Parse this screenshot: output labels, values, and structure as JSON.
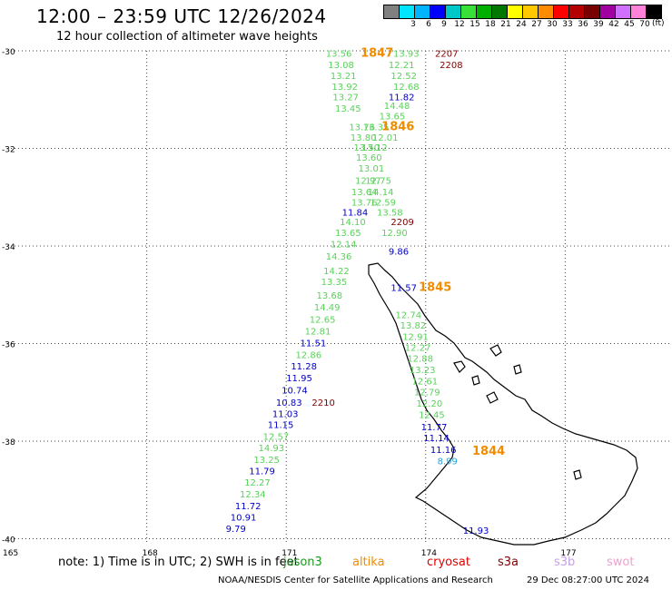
{
  "header": {
    "title": "12:00 – 23:59 UTC 12/26/2024",
    "subtitle": "12 hour collection of altimeter wave heights"
  },
  "legend": {
    "unit": "(ft)",
    "items": [
      {
        "label": "",
        "color": "#808080"
      },
      {
        "label": "3",
        "color": "#00e5ff"
      },
      {
        "label": "6",
        "color": "#00b4ff"
      },
      {
        "label": "9",
        "color": "#0000ff"
      },
      {
        "label": "12",
        "color": "#00c8c8"
      },
      {
        "label": "15",
        "color": "#38e038"
      },
      {
        "label": "18",
        "color": "#00b000"
      },
      {
        "label": "21",
        "color": "#007800"
      },
      {
        "label": "24",
        "color": "#ffff00"
      },
      {
        "label": "27",
        "color": "#ffc800"
      },
      {
        "label": "30",
        "color": "#ff8c00"
      },
      {
        "label": "33",
        "color": "#ff0000"
      },
      {
        "label": "36",
        "color": "#b40000"
      },
      {
        "label": "39",
        "color": "#780000"
      },
      {
        "label": "42",
        "color": "#a000a0"
      },
      {
        "label": "45",
        "color": "#d070ff"
      },
      {
        "label": "70",
        "color": "#ff82d8"
      },
      {
        "label": "",
        "color": "#000000"
      }
    ]
  },
  "map": {
    "lat_ticks": [
      "-30",
      "-32",
      "-34",
      "-36",
      "-38",
      "-40"
    ],
    "lon_ticks": [
      "165",
      "168",
      "171",
      "174",
      "177"
    ],
    "colors": {
      "green": "#5ad25a",
      "blue": "#0000cc",
      "cyan": "#2aa0d8",
      "orange": "#f08c00",
      "darkred": "#800000"
    },
    "points": [
      {
        "t": "13.56",
        "c": "green",
        "lon": 171.85,
        "lat": -30.05
      },
      {
        "t": "1847",
        "c": "orange",
        "lon": 172.6,
        "lat": -30.05,
        "b": 1
      },
      {
        "t": "13.93",
        "c": "green",
        "lon": 173.3,
        "lat": -30.05
      },
      {
        "t": "2207",
        "c": "darkred",
        "lon": 174.2,
        "lat": -30.05
      },
      {
        "t": "13.08",
        "c": "green",
        "lon": 171.9,
        "lat": -30.28
      },
      {
        "t": "12.21",
        "c": "green",
        "lon": 173.2,
        "lat": -30.28
      },
      {
        "t": "2208",
        "c": "darkred",
        "lon": 174.3,
        "lat": -30.28
      },
      {
        "t": "13.21",
        "c": "green",
        "lon": 171.95,
        "lat": -30.5
      },
      {
        "t": "12.52",
        "c": "green",
        "lon": 173.25,
        "lat": -30.5
      },
      {
        "t": "13.92",
        "c": "green",
        "lon": 171.98,
        "lat": -30.73
      },
      {
        "t": "12.68",
        "c": "green",
        "lon": 173.3,
        "lat": -30.73
      },
      {
        "t": "13.27",
        "c": "green",
        "lon": 172.0,
        "lat": -30.94
      },
      {
        "t": "11.82",
        "c": "blue",
        "lon": 173.2,
        "lat": -30.94
      },
      {
        "t": "13.45",
        "c": "green",
        "lon": 172.05,
        "lat": -31.17
      },
      {
        "t": "14.48",
        "c": "green",
        "lon": 173.1,
        "lat": -31.12
      },
      {
        "t": "13.65",
        "c": "green",
        "lon": 173.0,
        "lat": -31.33
      },
      {
        "t": "13.76",
        "c": "green",
        "lon": 172.35,
        "lat": -31.55
      },
      {
        "t": "13.35",
        "c": "green",
        "lon": 172.65,
        "lat": -31.55
      },
      {
        "t": "1846",
        "c": "orange",
        "lon": 173.05,
        "lat": -31.55,
        "b": 1
      },
      {
        "t": "13.80",
        "c": "green",
        "lon": 172.38,
        "lat": -31.77
      },
      {
        "t": "12.01",
        "c": "green",
        "lon": 172.85,
        "lat": -31.77
      },
      {
        "t": "13.50",
        "c": "green",
        "lon": 172.45,
        "lat": -31.97
      },
      {
        "t": "13.12",
        "c": "green",
        "lon": 172.62,
        "lat": -31.97
      },
      {
        "t": "13.60",
        "c": "green",
        "lon": 172.5,
        "lat": -32.18
      },
      {
        "t": "13.01",
        "c": "green",
        "lon": 172.55,
        "lat": -32.4
      },
      {
        "t": "12.97",
        "c": "green",
        "lon": 172.48,
        "lat": -32.65
      },
      {
        "t": "12.75",
        "c": "green",
        "lon": 172.7,
        "lat": -32.65
      },
      {
        "t": "13.64",
        "c": "green",
        "lon": 172.4,
        "lat": -32.88
      },
      {
        "t": "14.14",
        "c": "green",
        "lon": 172.75,
        "lat": -32.88
      },
      {
        "t": "13.76",
        "c": "green",
        "lon": 172.4,
        "lat": -33.1
      },
      {
        "t": "12.59",
        "c": "green",
        "lon": 172.8,
        "lat": -33.1
      },
      {
        "t": "11.84",
        "c": "blue",
        "lon": 172.2,
        "lat": -33.3
      },
      {
        "t": "13.58",
        "c": "green",
        "lon": 172.95,
        "lat": -33.3
      },
      {
        "t": "14.10",
        "c": "green",
        "lon": 172.15,
        "lat": -33.5
      },
      {
        "t": "2209",
        "c": "darkred",
        "lon": 173.25,
        "lat": -33.5
      },
      {
        "t": "13.65",
        "c": "green",
        "lon": 172.05,
        "lat": -33.72
      },
      {
        "t": "12.90",
        "c": "green",
        "lon": 173.05,
        "lat": -33.72
      },
      {
        "t": "12.14",
        "c": "green",
        "lon": 171.95,
        "lat": -33.95
      },
      {
        "t": "9.86",
        "c": "blue",
        "lon": 173.2,
        "lat": -34.1
      },
      {
        "t": "14.36",
        "c": "green",
        "lon": 171.85,
        "lat": -34.2
      },
      {
        "t": "14.22",
        "c": "green",
        "lon": 171.8,
        "lat": -34.5
      },
      {
        "t": "13.35",
        "c": "green",
        "lon": 171.75,
        "lat": -34.73
      },
      {
        "t": "11.57",
        "c": "blue",
        "lon": 173.25,
        "lat": -34.85
      },
      {
        "t": "1845",
        "c": "orange",
        "lon": 173.85,
        "lat": -34.85,
        "b": 1
      },
      {
        "t": "13.68",
        "c": "green",
        "lon": 171.65,
        "lat": -35.0
      },
      {
        "t": "14.49",
        "c": "green",
        "lon": 171.6,
        "lat": -35.25
      },
      {
        "t": "12.74",
        "c": "green",
        "lon": 173.35,
        "lat": -35.4
      },
      {
        "t": "12.65",
        "c": "green",
        "lon": 171.5,
        "lat": -35.5
      },
      {
        "t": "13.82",
        "c": "green",
        "lon": 173.45,
        "lat": -35.62
      },
      {
        "t": "12.81",
        "c": "green",
        "lon": 171.4,
        "lat": -35.74
      },
      {
        "t": "12.91",
        "c": "green",
        "lon": 173.5,
        "lat": -35.85
      },
      {
        "t": "11.51",
        "c": "blue",
        "lon": 171.3,
        "lat": -35.98
      },
      {
        "t": "12.27",
        "c": "green",
        "lon": 173.55,
        "lat": -36.07
      },
      {
        "t": "12.86",
        "c": "green",
        "lon": 171.2,
        "lat": -36.22
      },
      {
        "t": "12.88",
        "c": "green",
        "lon": 173.6,
        "lat": -36.3
      },
      {
        "t": "11.28",
        "c": "blue",
        "lon": 171.1,
        "lat": -36.46
      },
      {
        "t": "13.23",
        "c": "green",
        "lon": 173.65,
        "lat": -36.53
      },
      {
        "t": "11.95",
        "c": "blue",
        "lon": 171.0,
        "lat": -36.7
      },
      {
        "t": "12.61",
        "c": "green",
        "lon": 173.7,
        "lat": -36.76
      },
      {
        "t": "10.74",
        "c": "blue",
        "lon": 170.9,
        "lat": -36.95
      },
      {
        "t": "12.79",
        "c": "green",
        "lon": 173.75,
        "lat": -36.99
      },
      {
        "t": "10.83",
        "c": "blue",
        "lon": 170.78,
        "lat": -37.2
      },
      {
        "t": "2210",
        "c": "darkred",
        "lon": 171.55,
        "lat": -37.2
      },
      {
        "t": "12.20",
        "c": "green",
        "lon": 173.8,
        "lat": -37.22
      },
      {
        "t": "11.03",
        "c": "blue",
        "lon": 170.7,
        "lat": -37.43
      },
      {
        "t": "12.45",
        "c": "green",
        "lon": 173.85,
        "lat": -37.45
      },
      {
        "t": "11.15",
        "c": "blue",
        "lon": 170.6,
        "lat": -37.66
      },
      {
        "t": "11.77",
        "c": "blue",
        "lon": 173.9,
        "lat": -37.7
      },
      {
        "t": "12.57",
        "c": "green",
        "lon": 170.5,
        "lat": -37.9
      },
      {
        "t": "11.14",
        "c": "blue",
        "lon": 173.95,
        "lat": -37.93
      },
      {
        "t": "14.93",
        "c": "green",
        "lon": 170.4,
        "lat": -38.13
      },
      {
        "t": "13.25",
        "c": "green",
        "lon": 170.3,
        "lat": -38.37
      },
      {
        "t": "11.16",
        "c": "blue",
        "lon": 174.1,
        "lat": -38.17
      },
      {
        "t": "1844",
        "c": "orange",
        "lon": 175.0,
        "lat": -38.2,
        "b": 1
      },
      {
        "t": "11.79",
        "c": "blue",
        "lon": 170.2,
        "lat": -38.6
      },
      {
        "t": "8.99",
        "c": "cyan",
        "lon": 174.25,
        "lat": -38.4
      },
      {
        "t": "12.27",
        "c": "green",
        "lon": 170.1,
        "lat": -38.84
      },
      {
        "t": "12.34",
        "c": "green",
        "lon": 170.0,
        "lat": -39.08
      },
      {
        "t": "11.72",
        "c": "blue",
        "lon": 169.9,
        "lat": -39.32
      },
      {
        "t": "11.93",
        "c": "blue",
        "lon": 174.8,
        "lat": -39.82
      },
      {
        "t": "10.91",
        "c": "blue",
        "lon": 169.8,
        "lat": -39.55
      },
      {
        "t": "9.79",
        "c": "blue",
        "lon": 169.7,
        "lat": -39.79
      }
    ]
  },
  "note": "note:  1) Time is in UTC; 2) SWH is in feet",
  "satellites": [
    {
      "name": "jason3",
      "color": "#1a9a1a"
    },
    {
      "name": "altika",
      "color": "#f08c00"
    },
    {
      "name": "cryosat",
      "color": "#e00000"
    },
    {
      "name": "s3a",
      "color": "#800000"
    },
    {
      "name": "s3b",
      "color": "#c8a0e8"
    },
    {
      "name": "swot",
      "color": "#f0a0d0"
    }
  ],
  "footer": {
    "agency": "NOAA/NESDIS Center for Satellite Applications and Research",
    "timestamp": "29 Dec 08:27:00 UTC 2024"
  }
}
